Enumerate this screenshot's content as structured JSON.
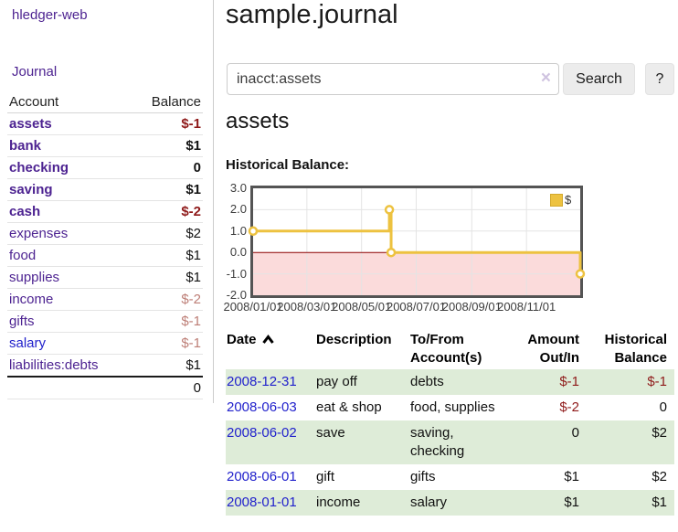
{
  "colors": {
    "link_purple": "#4d2391",
    "link_blue": "#2222cc",
    "negative_strong": "#8f1a1a",
    "negative_soft": "#bd7e76",
    "row_stripe_green": "#deecd8",
    "chart_line_gold": "#edc240",
    "chart_negative_region": "#fbdbdb",
    "chart_zero_line": "#8b0000"
  },
  "app": {
    "brand": "hledger-web"
  },
  "sidebar": {
    "journal_label": "Journal",
    "headers": {
      "account": "Account",
      "balance": "Balance"
    },
    "accounts": [
      {
        "name": "assets",
        "balance": "$-1",
        "depth": 1,
        "bold": true,
        "balance_style": "neg-strong",
        "link_style": "purple"
      },
      {
        "name": "bank",
        "balance": "$1",
        "depth": 2,
        "bold": true,
        "balance_style": "",
        "link_style": "purple"
      },
      {
        "name": "checking",
        "balance": "0",
        "depth": 3,
        "bold": true,
        "balance_style": "",
        "link_style": "purple"
      },
      {
        "name": "saving",
        "balance": "$1",
        "depth": 3,
        "bold": true,
        "balance_style": "",
        "link_style": "purple"
      },
      {
        "name": "cash",
        "balance": "$-2",
        "depth": 2,
        "bold": true,
        "balance_style": "neg-strong",
        "link_style": "purple"
      },
      {
        "name": "expenses",
        "balance": "$2",
        "depth": 1,
        "bold": false,
        "balance_style": "",
        "link_style": "purple"
      },
      {
        "name": "food",
        "balance": "$1",
        "depth": 2,
        "bold": false,
        "balance_style": "",
        "link_style": "purple"
      },
      {
        "name": "supplies",
        "balance": "$1",
        "depth": 2,
        "bold": false,
        "balance_style": "",
        "link_style": "purple"
      },
      {
        "name": "income",
        "balance": "$-2",
        "depth": 1,
        "bold": false,
        "balance_style": "neg-soft",
        "link_style": "purple"
      },
      {
        "name": "gifts",
        "balance": "$-1",
        "depth": 2,
        "bold": false,
        "balance_style": "neg-soft",
        "link_style": "purple"
      },
      {
        "name": "salary",
        "balance": "$-1",
        "depth": 2,
        "bold": false,
        "balance_style": "neg-soft",
        "link_style": "blue"
      },
      {
        "name": "liabilities:debts",
        "balance": "$1",
        "depth": 1,
        "bold": false,
        "balance_style": "",
        "link_style": "purple"
      }
    ],
    "total": "0"
  },
  "header": {
    "title": "sample.journal"
  },
  "search": {
    "value": "inacct:assets",
    "clear_icon": "×",
    "button_label": "Search",
    "help_label": "?"
  },
  "account_page": {
    "title": "assets",
    "chart_label": "Historical Balance:"
  },
  "chart_data": {
    "type": "line",
    "title": "Historical Balance:",
    "step": true,
    "series": [
      {
        "name": "$",
        "color": "#edc240",
        "points": [
          [
            "2008-01-01",
            1.0
          ],
          [
            "2008-06-01",
            2.0
          ],
          [
            "2008-06-03",
            0.0
          ],
          [
            "2008-12-31",
            -1.0
          ]
        ]
      }
    ],
    "x_ticks": [
      "2008/01/01",
      "2008/03/01",
      "2008/05/01",
      "2008/07/01",
      "2008/09/01",
      "2008/11/01"
    ],
    "y_ticks": [
      3.0,
      2.0,
      1.0,
      0.0,
      -1.0,
      -2.0
    ],
    "xlim_dates": [
      "2008-01-01",
      "2008-12-31"
    ],
    "ylim": [
      -2.0,
      3.0
    ],
    "legend": {
      "label": "$",
      "position": "top-right"
    },
    "grid": true,
    "negative_region_shaded": true
  },
  "register": {
    "headers": {
      "date": "Date",
      "sort_icon": "chevron-up",
      "description": "Description",
      "accounts": "To/From Account(s)",
      "amount": "Amount Out/In",
      "balance": "Historical Balance"
    },
    "rows": [
      {
        "date": "2008-12-31",
        "description": "pay off",
        "accounts": "debts",
        "amount": "$-1",
        "amount_style": "neg",
        "balance": "$-1",
        "balance_style": "neg"
      },
      {
        "date": "2008-06-03",
        "description": "eat & shop",
        "accounts": "food, supplies",
        "amount": "$-2",
        "amount_style": "neg",
        "balance": "0",
        "balance_style": ""
      },
      {
        "date": "2008-06-02",
        "description": "save",
        "accounts": "saving, checking",
        "amount": "0",
        "amount_style": "",
        "balance": "$2",
        "balance_style": ""
      },
      {
        "date": "2008-06-01",
        "description": "gift",
        "accounts": "gifts",
        "amount": "$1",
        "amount_style": "",
        "balance": "$2",
        "balance_style": ""
      },
      {
        "date": "2008-01-01",
        "description": "income",
        "accounts": "salary",
        "amount": "$1",
        "amount_style": "",
        "balance": "$1",
        "balance_style": ""
      }
    ]
  }
}
